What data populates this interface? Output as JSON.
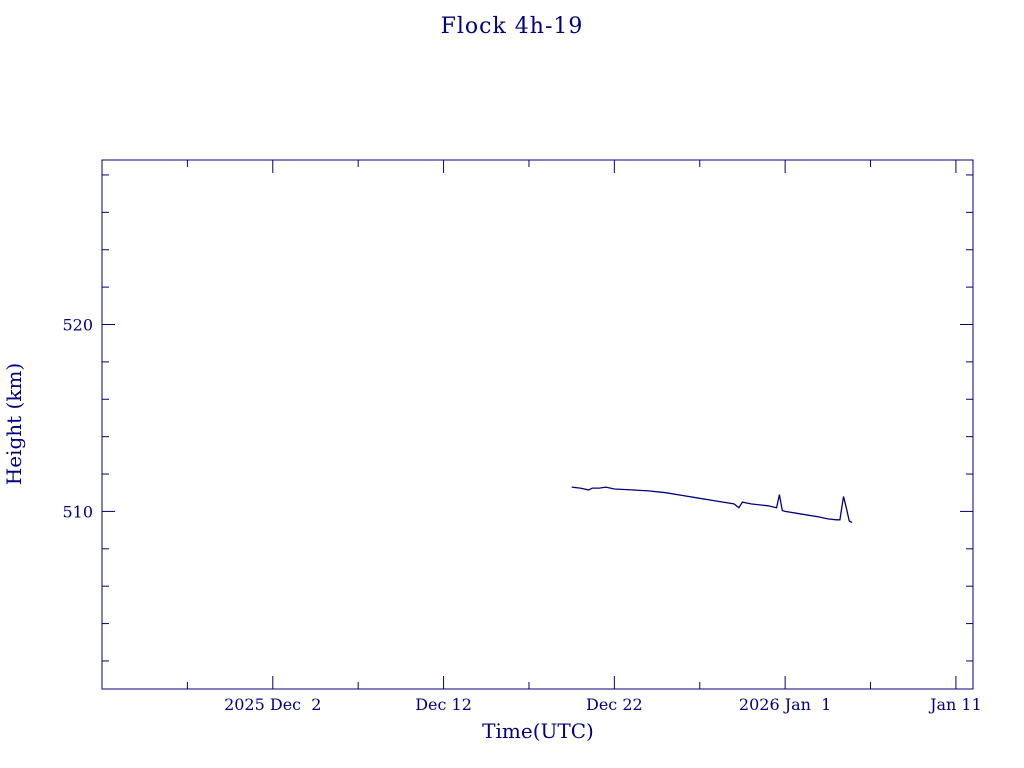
{
  "chart_data": {
    "type": "line",
    "title": "Flock 4h-19",
    "xlabel": "Time(UTC)",
    "ylabel": "Height (km)",
    "line_color": "#000080",
    "xlim": [
      "2025-11-22",
      "2026-01-12"
    ],
    "ylim": [
      500.5,
      528.8
    ],
    "xticks": [
      {
        "date": "2025-12-02",
        "label": "2025 Dec  2"
      },
      {
        "date": "2025-12-12",
        "label": "Dec 12"
      },
      {
        "date": "2025-12-22",
        "label": "Dec 22"
      },
      {
        "date": "2026-01-01",
        "label": "2026 Jan  1"
      },
      {
        "date": "2026-01-11",
        "label": "Jan 11"
      }
    ],
    "yticks": [
      {
        "value": 510,
        "label": "510"
      },
      {
        "value": 520,
        "label": "520"
      }
    ],
    "grid": false,
    "series": [
      {
        "x": [
          "2025-12-19 12:00",
          "2025-12-20 00:00",
          "2025-12-20 12:00",
          "2025-12-20 17:00",
          "2025-12-21 03:00",
          "2025-12-21 12:00",
          "2025-12-22 00:00",
          "2025-12-23 00:00",
          "2025-12-24 00:00",
          "2025-12-25 00:00",
          "2025-12-26 00:00",
          "2025-12-27 00:00",
          "2025-12-28 00:00",
          "2025-12-29 00:00",
          "2025-12-29 07:00",
          "2025-12-29 12:00",
          "2025-12-30 00:00",
          "2025-12-31 00:00",
          "2025-12-31 12:00",
          "2025-12-31 16:00",
          "2025-12-31 20:00",
          "2026-01-01 00:00",
          "2026-01-02 00:00",
          "2026-01-03 00:00",
          "2026-01-03 12:00",
          "2026-01-04 00:00",
          "2026-01-04 05:00",
          "2026-01-04 10:00",
          "2026-01-04 14:00",
          "2026-01-04 18:00",
          "2026-01-04 22:00"
        ],
        "y": [
          511.3,
          511.25,
          511.15,
          511.25,
          511.25,
          511.3,
          511.2,
          511.15,
          511.1,
          511.0,
          510.85,
          510.7,
          510.55,
          510.4,
          510.2,
          510.5,
          510.4,
          510.3,
          510.2,
          510.9,
          510.05,
          510.0,
          509.85,
          509.7,
          509.6,
          509.55,
          509.55,
          510.8,
          510.2,
          509.5,
          509.4
        ]
      }
    ]
  }
}
